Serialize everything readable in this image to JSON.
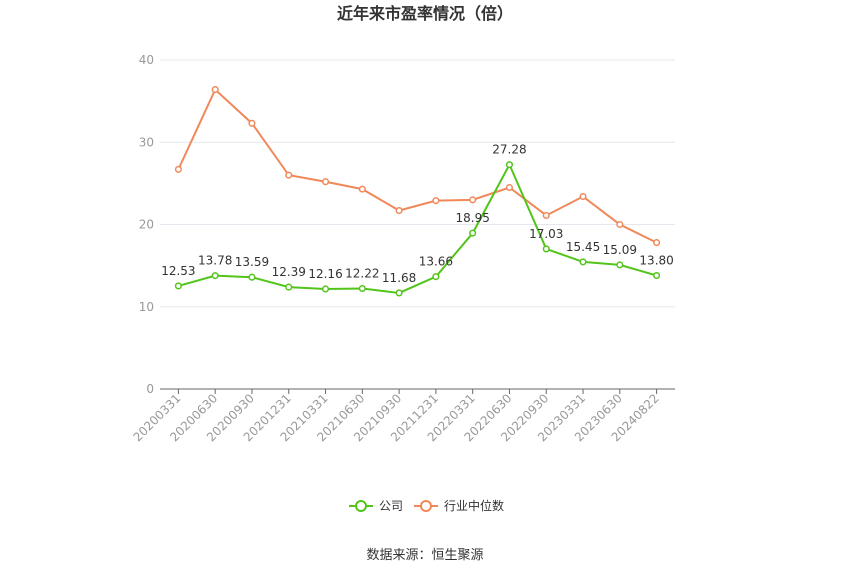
{
  "chart_data": {
    "type": "line",
    "title": "近年来市盈率情况（倍）",
    "categories": [
      "20200331",
      "20200630",
      "20200930",
      "20201231",
      "20210331",
      "20210630",
      "20210930",
      "20211231",
      "20220331",
      "20220630",
      "20220930",
      "20230331",
      "20230630",
      "20240822"
    ],
    "ylim": [
      0,
      40
    ],
    "yticks": [
      0,
      10,
      20,
      30,
      40
    ],
    "grid": true,
    "legend_position": "bottom",
    "series": [
      {
        "name": "公司",
        "color": "#52c41a",
        "values": [
          12.53,
          13.78,
          13.59,
          12.39,
          12.16,
          12.22,
          11.68,
          13.66,
          18.95,
          27.28,
          17.03,
          15.45,
          15.09,
          13.8
        ],
        "labels": [
          "12.53",
          "13.78",
          "13.59",
          "12.39",
          "12.16",
          "12.22",
          "11.68",
          "13.66",
          "18.95",
          "27.28",
          "17.03",
          "15.45",
          "15.09",
          "13.80"
        ]
      },
      {
        "name": "行业中位数",
        "color": "#f0885a",
        "values": [
          26.7,
          36.4,
          32.3,
          26.0,
          25.2,
          24.3,
          21.7,
          22.9,
          23.0,
          24.5,
          21.1,
          23.4,
          20.0,
          17.8
        ]
      }
    ],
    "source": "数据来源：恒生聚源"
  }
}
